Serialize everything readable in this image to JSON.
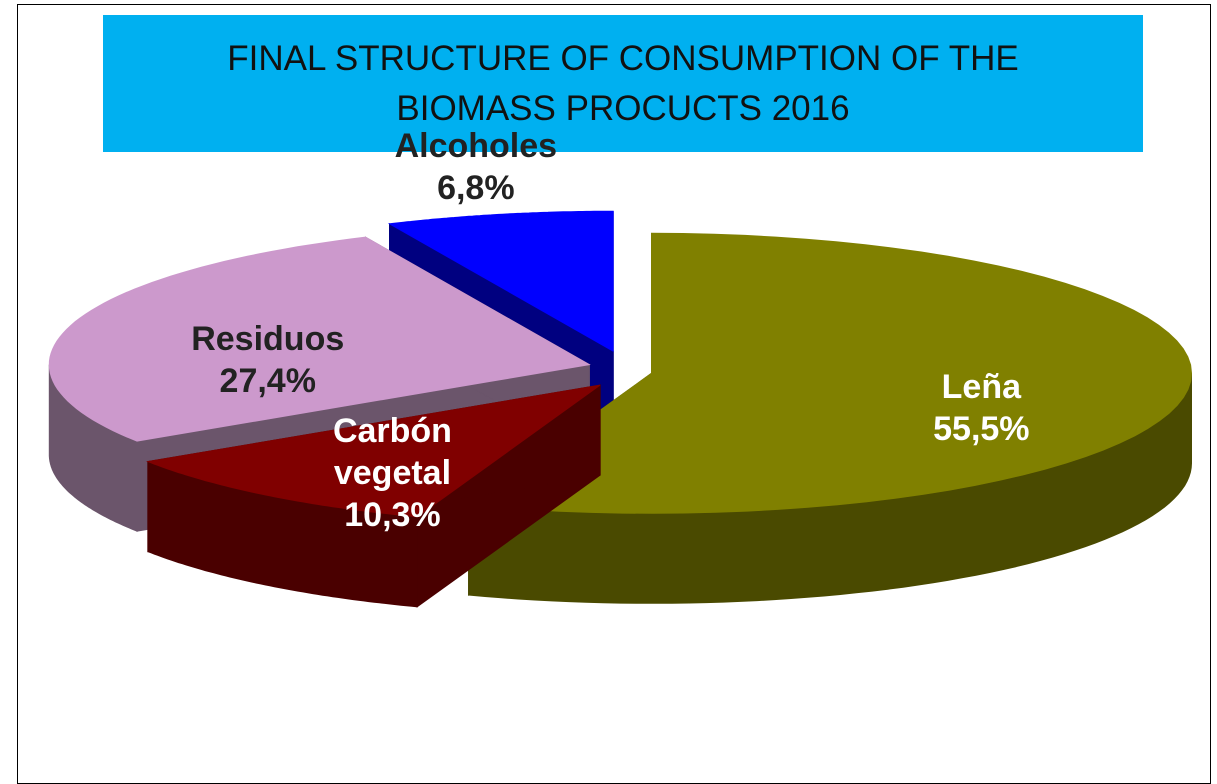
{
  "chart_data": {
    "type": "pie3d",
    "title": "FINAL STRUCTURE OF CONSUMPTION OF THE BIOMASS PROCUCTS 2016",
    "categories": [
      "Leña",
      "Carbón vegetal",
      "Residuos",
      "Alcoholes"
    ],
    "values": [
      55.5,
      10.3,
      27.4,
      6.8
    ],
    "value_labels": [
      "55,5%",
      "10,3%",
      "27,4%",
      "6,8%"
    ],
    "colors": [
      "#808000",
      "#800000",
      "#cc99cc",
      "#0000ff"
    ],
    "side_colors": [
      "#4a4a00",
      "#4a0000",
      "#6b556b",
      "#000080"
    ]
  }
}
